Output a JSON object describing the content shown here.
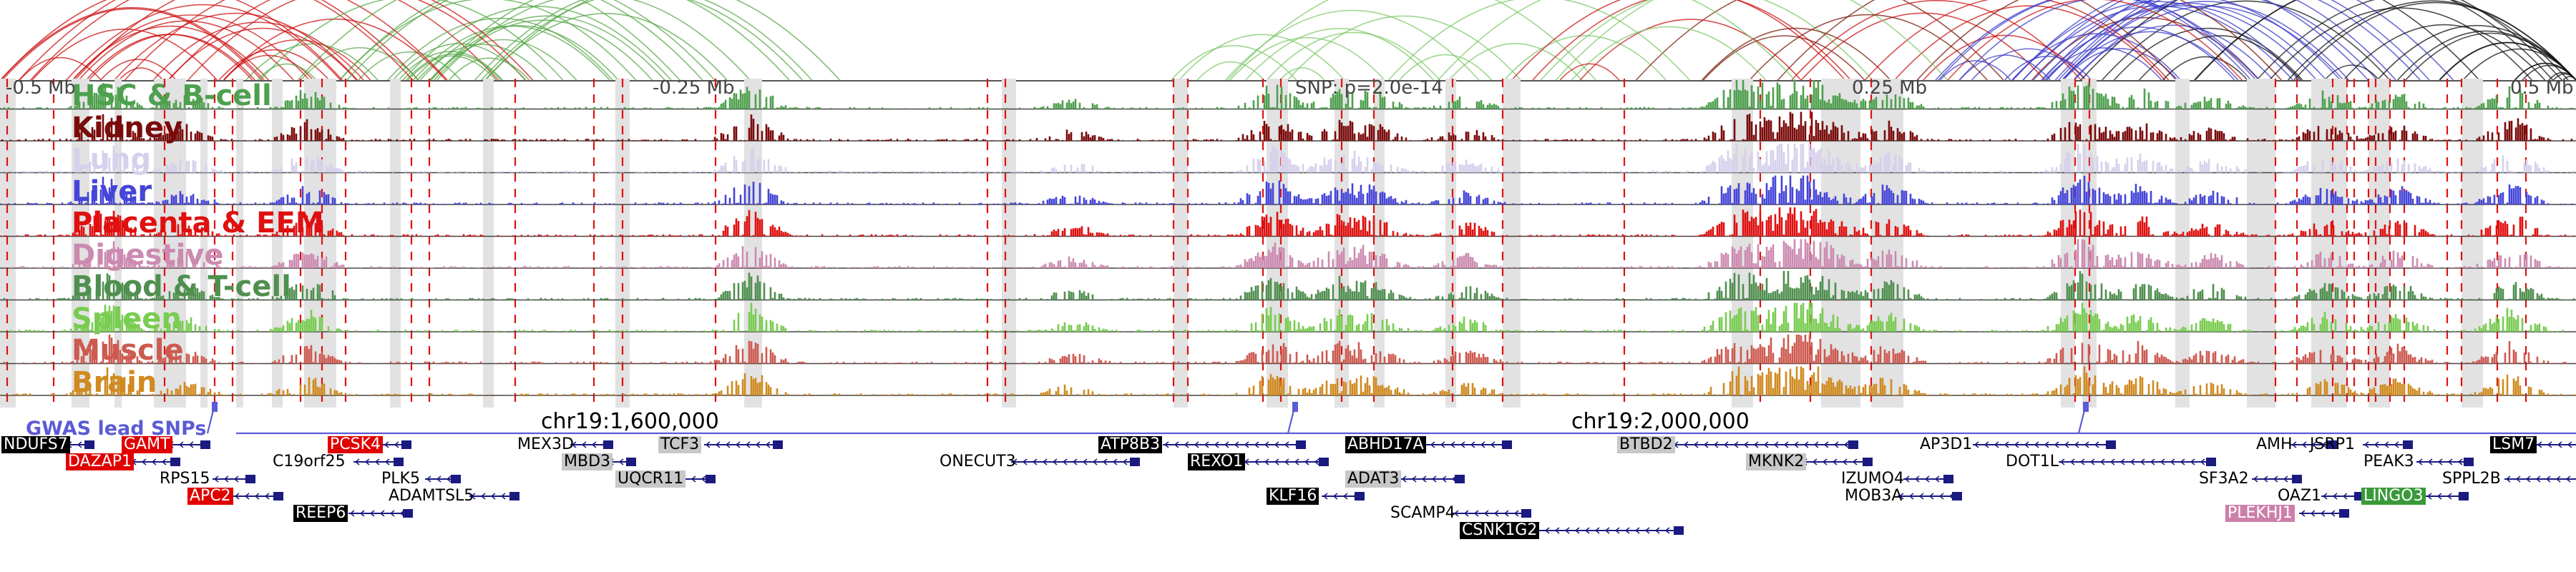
{
  "ruler": {
    "ticks": [
      "-0.5 Mb",
      "-0.25 Mb",
      "0.25 Mb",
      "0.5 Mb"
    ],
    "snp_text": "SNP: p=2.0e-14"
  },
  "tracks": [
    {
      "label": "HSC & B-cell",
      "color": "#4ea04e"
    },
    {
      "label": "Kidney",
      "color": "#7a0b0b"
    },
    {
      "label": "Lung",
      "color": "#d6d0ec"
    },
    {
      "label": "Liver",
      "color": "#4545d8"
    },
    {
      "label": "Placenta & EEM",
      "color": "#e01010"
    },
    {
      "label": "Digestive",
      "color": "#cc8ab0"
    },
    {
      "label": "Blood & T-cell",
      "color": "#4f8f4f"
    },
    {
      "label": "Spleen",
      "color": "#78cc50"
    },
    {
      "label": "Muscle",
      "color": "#cd5a50"
    },
    {
      "label": "Brain",
      "color": "#d08a20"
    }
  ],
  "coordinates": [
    "chr19:1,600,000",
    "chr19:2,000,000"
  ],
  "gwas": {
    "label": "GWAS lead SNPs",
    "color": "#5b5bd6"
  },
  "genes": [
    {
      "name": "NDUFS7",
      "style": "black"
    },
    {
      "name": "GAMT",
      "style": "red"
    },
    {
      "name": "DAZAP1",
      "style": "red"
    },
    {
      "name": "RPS15",
      "style": "plain"
    },
    {
      "name": "APC2",
      "style": "red"
    },
    {
      "name": "PCSK4",
      "style": "red"
    },
    {
      "name": "C19orf25",
      "style": "plain"
    },
    {
      "name": "PLK5",
      "style": "plain"
    },
    {
      "name": "REEP6",
      "style": "black"
    },
    {
      "name": "ADAMTSL5",
      "style": "plain"
    },
    {
      "name": "MEX3D",
      "style": "plain"
    },
    {
      "name": "MBD3",
      "style": "grey"
    },
    {
      "name": "UQCR11",
      "style": "grey"
    },
    {
      "name": "TCF3",
      "style": "grey"
    },
    {
      "name": "ONECUT3",
      "style": "plain"
    },
    {
      "name": "ATP8B3",
      "style": "black"
    },
    {
      "name": "REXO1",
      "style": "black"
    },
    {
      "name": "KLF16",
      "style": "black"
    },
    {
      "name": "ABHD17A",
      "style": "black"
    },
    {
      "name": "ADAT3",
      "style": "grey"
    },
    {
      "name": "SCAMP4",
      "style": "plain"
    },
    {
      "name": "CSNK1G2",
      "style": "black"
    },
    {
      "name": "BTBD2",
      "style": "grey"
    },
    {
      "name": "MKNK2",
      "style": "grey"
    },
    {
      "name": "IZUMO4",
      "style": "plain"
    },
    {
      "name": "MOB3A",
      "style": "plain"
    },
    {
      "name": "AP3D1",
      "style": "plain"
    },
    {
      "name": "DOT1L",
      "style": "plain"
    },
    {
      "name": "SF3A2",
      "style": "plain"
    },
    {
      "name": "AMH",
      "style": "plain"
    },
    {
      "name": "JSRP1",
      "style": "plain"
    },
    {
      "name": "OAZ1",
      "style": "plain"
    },
    {
      "name": "PLEKHJ1",
      "style": "pink"
    },
    {
      "name": "PEAK3",
      "style": "plain"
    },
    {
      "name": "LINGO3",
      "style": "green"
    },
    {
      "name": "LSM7",
      "style": "black"
    },
    {
      "name": "SPPL2B",
      "style": "plain"
    }
  ]
}
